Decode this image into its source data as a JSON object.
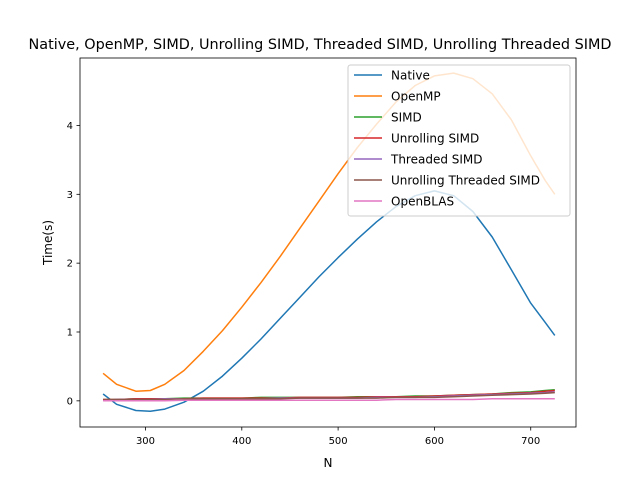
{
  "chart_data": {
    "type": "line",
    "title": "Native, OpenMP, SIMD, Unrolling SIMD, Threaded SIMD, Unrolling Threaded SIMD",
    "xlabel": "N",
    "ylabel": "Time(s)",
    "xlim": [
      232,
      747
    ],
    "ylim": [
      -0.38,
      4.98
    ],
    "xticks": [
      300,
      400,
      500,
      600,
      700
    ],
    "yticks": [
      0,
      1,
      2,
      3,
      4
    ],
    "grid": false,
    "legend_position": "top-right",
    "x": [
      256,
      270,
      290,
      305,
      320,
      340,
      360,
      380,
      400,
      420,
      440,
      460,
      480,
      500,
      520,
      540,
      560,
      580,
      600,
      620,
      640,
      660,
      680,
      700,
      715,
      725
    ],
    "series": [
      {
        "name": "Native",
        "color": "#1f77b4",
        "values": [
          0.1,
          -0.05,
          -0.14,
          -0.15,
          -0.12,
          -0.02,
          0.14,
          0.36,
          0.62,
          0.9,
          1.2,
          1.5,
          1.8,
          2.08,
          2.35,
          2.6,
          2.82,
          2.98,
          3.05,
          2.98,
          2.75,
          2.38,
          1.9,
          1.42,
          1.14,
          0.95
        ]
      },
      {
        "name": "OpenMP",
        "color": "#ff7f0e",
        "values": [
          0.4,
          0.24,
          0.14,
          0.15,
          0.24,
          0.44,
          0.72,
          1.02,
          1.36,
          1.72,
          2.1,
          2.5,
          2.9,
          3.3,
          3.68,
          4.02,
          4.34,
          4.58,
          4.72,
          4.76,
          4.68,
          4.46,
          4.08,
          3.56,
          3.2,
          3.0
        ]
      },
      {
        "name": "SIMD",
        "color": "#2ca02c",
        "values": [
          0.02,
          0.02,
          0.03,
          0.03,
          0.03,
          0.04,
          0.04,
          0.04,
          0.04,
          0.05,
          0.05,
          0.05,
          0.05,
          0.05,
          0.06,
          0.06,
          0.06,
          0.07,
          0.07,
          0.08,
          0.09,
          0.1,
          0.12,
          0.13,
          0.15,
          0.16
        ]
      },
      {
        "name": "Unrolling SIMD",
        "color": "#d62728",
        "values": [
          0.02,
          0.02,
          0.03,
          0.03,
          0.03,
          0.03,
          0.04,
          0.04,
          0.04,
          0.04,
          0.04,
          0.05,
          0.05,
          0.05,
          0.05,
          0.06,
          0.06,
          0.06,
          0.07,
          0.08,
          0.09,
          0.1,
          0.11,
          0.12,
          0.14,
          0.15
        ]
      },
      {
        "name": "Threaded SIMD",
        "color": "#9467bd",
        "values": [
          0.01,
          0.02,
          0.02,
          0.02,
          0.03,
          0.03,
          0.03,
          0.03,
          0.03,
          0.03,
          0.04,
          0.04,
          0.04,
          0.04,
          0.04,
          0.05,
          0.05,
          0.05,
          0.06,
          0.07,
          0.08,
          0.09,
          0.1,
          0.11,
          0.12,
          0.13
        ]
      },
      {
        "name": "Unrolling Threaded SIMD",
        "color": "#8c564b",
        "values": [
          0.01,
          0.02,
          0.02,
          0.02,
          0.02,
          0.03,
          0.03,
          0.03,
          0.03,
          0.03,
          0.03,
          0.04,
          0.04,
          0.04,
          0.04,
          0.04,
          0.05,
          0.05,
          0.05,
          0.06,
          0.07,
          0.08,
          0.09,
          0.1,
          0.11,
          0.12
        ]
      },
      {
        "name": "OpenBLAS",
        "color": "#e377c2",
        "values": [
          0.0,
          0.0,
          0.0,
          0.0,
          0.0,
          0.01,
          0.01,
          0.01,
          0.01,
          0.01,
          0.01,
          0.01,
          0.01,
          0.01,
          0.01,
          0.01,
          0.02,
          0.02,
          0.02,
          0.02,
          0.02,
          0.03,
          0.03,
          0.03,
          0.03,
          0.03
        ]
      }
    ]
  }
}
